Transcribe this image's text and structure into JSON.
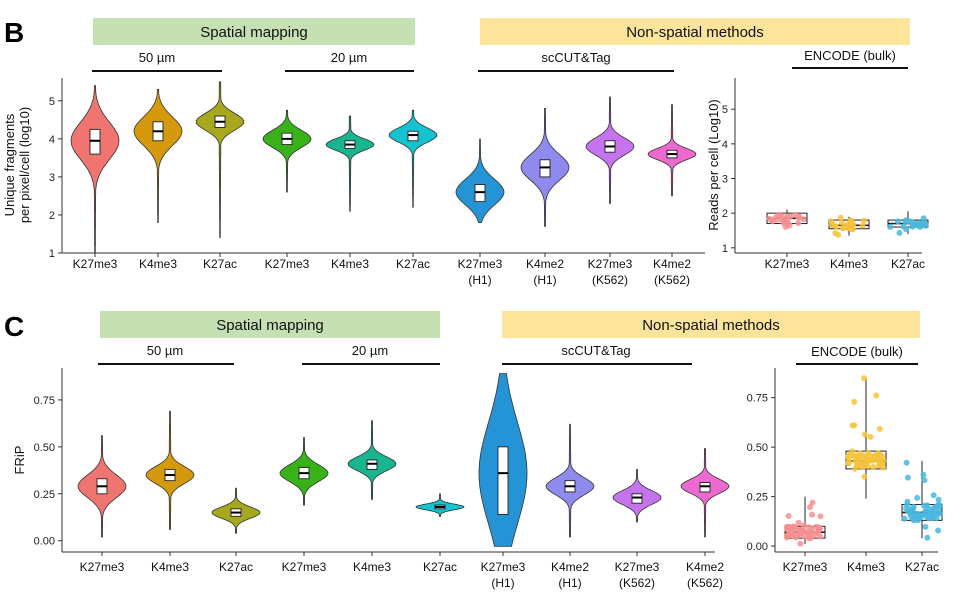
{
  "panels": {
    "B": {
      "label": "B",
      "header_spatial": "Spatial mapping",
      "header_nonspatial": "Non-spatial methods",
      "sub_50": "50 µm",
      "sub_20": "20 µm",
      "sub_sc": "scCUT&Tag",
      "sub_enc": "ENCODE (bulk)"
    },
    "C": {
      "label": "C",
      "header_spatial": "Spatial mapping",
      "header_nonspatial": "Non-spatial methods",
      "sub_50": "50 µm",
      "sub_20": "20 µm",
      "sub_sc": "scCUT&Tag",
      "sub_enc": "ENCODE (bulk)"
    }
  },
  "colors": {
    "spatial_bg": "#c5e1b4",
    "nonspatial_bg": "#fde49b",
    "red": "#f07470",
    "orange": "#d49a0c",
    "olive": "#a8a81e",
    "green": "#39b21a",
    "teal": "#18b58f",
    "cyan": "#14c3d0",
    "blue": "#2594d6",
    "purple": "#8f8aee",
    "violet": "#c574ee",
    "pink": "#ec6ad0",
    "enc_red": "#f58f90",
    "enc_yellow": "#f5c33a",
    "enc_blue": "#4ab7dd"
  },
  "chart_data": [
    {
      "type": "violin",
      "panel": "B",
      "title": "Unique fragments per pixel/cell",
      "ylabel": "Unique fragments\nper pixel/cell (log10)",
      "ylim": [
        1,
        5.6
      ],
      "yticks": [
        1,
        2,
        3,
        4,
        5
      ],
      "categories": [
        "K27me3",
        "K4me3",
        "K27ac",
        "K27me3",
        "K4me3",
        "K27ac",
        "K27me3\n(H1)",
        "K4me2\n(H1)",
        "K27me3\n(K562)",
        "K4me2\n(K562)"
      ],
      "series": [
        {
          "name": "50 µm K27me3",
          "median": 3.95,
          "q1": 3.6,
          "q3": 4.25,
          "min": 1.0,
          "max": 5.4,
          "color": "red"
        },
        {
          "name": "50 µm K4me3",
          "median": 4.2,
          "q1": 3.95,
          "q3": 4.45,
          "min": 1.8,
          "max": 5.3,
          "color": "orange"
        },
        {
          "name": "50 µm K27ac",
          "median": 4.45,
          "q1": 4.3,
          "q3": 4.6,
          "min": 1.4,
          "max": 5.5,
          "color": "olive"
        },
        {
          "name": "20 µm K27me3",
          "median": 4.0,
          "q1": 3.85,
          "q3": 4.15,
          "min": 2.6,
          "max": 4.75,
          "color": "green"
        },
        {
          "name": "20 µm K4me3",
          "median": 3.85,
          "q1": 3.75,
          "q3": 3.95,
          "min": 2.1,
          "max": 4.6,
          "color": "teal"
        },
        {
          "name": "20 µm K27ac",
          "median": 4.1,
          "q1": 3.95,
          "q3": 4.2,
          "min": 2.2,
          "max": 4.75,
          "color": "cyan"
        },
        {
          "name": "scCUT&Tag K27me3 (H1)",
          "median": 2.6,
          "q1": 2.35,
          "q3": 2.8,
          "min": 1.8,
          "max": 4.0,
          "color": "blue"
        },
        {
          "name": "scCUT&Tag K4me2 (H1)",
          "median": 3.25,
          "q1": 3.0,
          "q3": 3.45,
          "min": 1.7,
          "max": 4.8,
          "color": "purple"
        },
        {
          "name": "scCUT&Tag K27me3 (K562)",
          "median": 3.8,
          "q1": 3.65,
          "q3": 3.95,
          "min": 2.3,
          "max": 5.1,
          "color": "violet"
        },
        {
          "name": "scCUT&Tag K4me2 (K562)",
          "median": 3.6,
          "q1": 3.5,
          "q3": 3.7,
          "min": 2.5,
          "max": 4.9,
          "color": "pink"
        }
      ]
    },
    {
      "type": "box",
      "panel": "B",
      "title": "ENCODE (bulk)",
      "ylabel": "Reads per cell (Log10)",
      "ylim": [
        0.85,
        5.9
      ],
      "yticks": [
        1,
        2,
        3,
        4,
        5
      ],
      "categories": [
        "K27me3",
        "K4me3",
        "K27ac"
      ],
      "series": [
        {
          "name": "K27me3",
          "median": 1.85,
          "q1": 1.7,
          "q3": 2.0,
          "min": 1.6,
          "max": 2.1,
          "color": "enc_red"
        },
        {
          "name": "K4me3",
          "median": 1.65,
          "q1": 1.55,
          "q3": 1.8,
          "min": 1.35,
          "max": 1.9,
          "color": "enc_yellow"
        },
        {
          "name": "K27ac",
          "median": 1.7,
          "q1": 1.6,
          "q3": 1.8,
          "min": 1.4,
          "max": 2.05,
          "color": "enc_blue"
        }
      ]
    },
    {
      "type": "violin",
      "panel": "C",
      "title": "FRiP",
      "ylabel": "FRiP",
      "ylim": [
        -0.06,
        0.92
      ],
      "yticks": [
        0.0,
        0.25,
        0.5,
        0.75
      ],
      "ytick_labels": [
        "0.00",
        "0.25",
        "0.50",
        "0.75"
      ],
      "categories": [
        "K27me3",
        "K4me3",
        "K27ac",
        "K27me3",
        "K4me3",
        "K27ac",
        "K27me3\n(H1)",
        "K4me2\n(H1)",
        "K27me3\n(K562)",
        "K4me2\n(K562)"
      ],
      "series": [
        {
          "name": "50 µm K27me3",
          "median": 0.29,
          "q1": 0.25,
          "q3": 0.33,
          "min": 0.02,
          "max": 0.56,
          "color": "red"
        },
        {
          "name": "50 µm K4me3",
          "median": 0.35,
          "q1": 0.32,
          "q3": 0.38,
          "min": 0.06,
          "max": 0.69,
          "color": "orange"
        },
        {
          "name": "50 µm K27ac",
          "median": 0.15,
          "q1": 0.13,
          "q3": 0.17,
          "min": 0.04,
          "max": 0.28,
          "color": "olive"
        },
        {
          "name": "20 µm K27me3",
          "median": 0.36,
          "q1": 0.33,
          "q3": 0.39,
          "min": 0.19,
          "max": 0.55,
          "color": "green"
        },
        {
          "name": "20 µm K4me3",
          "median": 0.41,
          "q1": 0.38,
          "q3": 0.43,
          "min": 0.22,
          "max": 0.64,
          "color": "teal"
        },
        {
          "name": "20 µm K27ac",
          "median": 0.18,
          "q1": 0.17,
          "q3": 0.19,
          "min": 0.13,
          "max": 0.25,
          "color": "cyan"
        },
        {
          "name": "scCUT&Tag K27me3 (H1)",
          "median": 0.36,
          "q1": 0.14,
          "q3": 0.5,
          "min": -0.03,
          "max": 0.89,
          "color": "blue"
        },
        {
          "name": "scCUT&Tag K4me2 (H1)",
          "median": 0.29,
          "q1": 0.26,
          "q3": 0.32,
          "min": 0.02,
          "max": 0.62,
          "color": "purple"
        },
        {
          "name": "scCUT&Tag K27me3 (K562)",
          "median": 0.23,
          "q1": 0.2,
          "q3": 0.25,
          "min": 0.1,
          "max": 0.38,
          "color": "violet"
        },
        {
          "name": "scCUT&Tag K4me2 (K562)",
          "median": 0.29,
          "q1": 0.26,
          "q3": 0.31,
          "min": 0.02,
          "max": 0.49,
          "color": "pink"
        }
      ]
    },
    {
      "type": "box",
      "panel": "C",
      "title": "ENCODE (bulk)",
      "ylabel": "",
      "ylim": [
        -0.03,
        0.9
      ],
      "yticks": [
        0.0,
        0.25,
        0.5,
        0.75
      ],
      "ytick_labels": [
        "0.00",
        "0.25",
        "0.50",
        "0.75"
      ],
      "categories": [
        "K27me3",
        "K4me3",
        "K27ac"
      ],
      "series": [
        {
          "name": "K27me3",
          "median": 0.07,
          "q1": 0.04,
          "q3": 0.1,
          "min": 0.01,
          "max": 0.25,
          "color": "enc_red"
        },
        {
          "name": "K4me3",
          "median": 0.43,
          "q1": 0.39,
          "q3": 0.48,
          "min": 0.24,
          "max": 0.85,
          "color": "enc_yellow"
        },
        {
          "name": "K27ac",
          "median": 0.17,
          "q1": 0.13,
          "q3": 0.21,
          "min": 0.04,
          "max": 0.43,
          "color": "enc_blue"
        }
      ]
    }
  ]
}
